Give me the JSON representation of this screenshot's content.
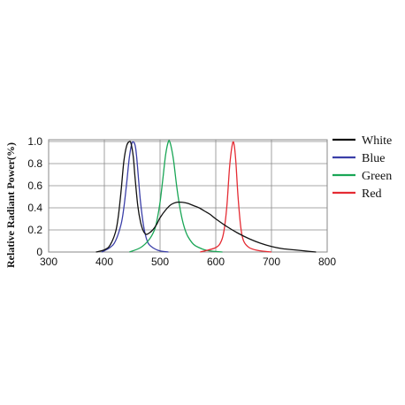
{
  "chart_data": {
    "type": "line",
    "xlabel": "",
    "ylabel": "Relative Radiant Power(%)",
    "xlim": [
      300,
      800
    ],
    "ylim": [
      0,
      1.0
    ],
    "x_ticks": [
      "300",
      "400",
      "500",
      "600",
      "700",
      "800"
    ],
    "y_ticks": [
      "0",
      "0.2",
      "0.4",
      "0.6",
      "0.8",
      "1.0"
    ],
    "grid": true,
    "legend_position": "right",
    "series": [
      {
        "name": "White",
        "color": "#111111",
        "x": [
          385,
          400,
          410,
          420,
          425,
          430,
          435,
          440,
          445,
          448,
          452,
          455,
          460,
          465,
          470,
          475,
          480,
          485,
          490,
          495,
          500,
          510,
          520,
          530,
          540,
          550,
          560,
          570,
          580,
          590,
          600,
          620,
          640,
          660,
          680,
          700,
          720,
          740,
          760,
          780
        ],
        "y": [
          0.0,
          0.02,
          0.06,
          0.18,
          0.32,
          0.55,
          0.82,
          0.96,
          1.0,
          0.98,
          0.86,
          0.68,
          0.42,
          0.27,
          0.19,
          0.16,
          0.17,
          0.19,
          0.22,
          0.26,
          0.31,
          0.38,
          0.43,
          0.45,
          0.45,
          0.44,
          0.42,
          0.4,
          0.37,
          0.34,
          0.3,
          0.23,
          0.17,
          0.12,
          0.08,
          0.05,
          0.03,
          0.02,
          0.01,
          0.0
        ]
      },
      {
        "name": "Blue",
        "color": "#3b3fa8",
        "x": [
          395,
          410,
          420,
          430,
          435,
          440,
          445,
          450,
          455,
          458,
          462,
          465,
          470,
          475,
          480,
          490,
          500,
          515
        ],
        "y": [
          0.0,
          0.04,
          0.1,
          0.25,
          0.4,
          0.62,
          0.86,
          0.99,
          0.97,
          0.86,
          0.62,
          0.45,
          0.25,
          0.13,
          0.07,
          0.03,
          0.01,
          0.0
        ]
      },
      {
        "name": "Green",
        "color": "#1aa656",
        "x": [
          445,
          465,
          480,
          490,
          495,
          500,
          505,
          510,
          515,
          518,
          522,
          525,
          530,
          535,
          540,
          545,
          550,
          560,
          570,
          580,
          590,
          600,
          612
        ],
        "y": [
          0.0,
          0.04,
          0.11,
          0.2,
          0.3,
          0.45,
          0.66,
          0.88,
          1.0,
          0.99,
          0.9,
          0.8,
          0.59,
          0.42,
          0.29,
          0.2,
          0.14,
          0.07,
          0.04,
          0.02,
          0.01,
          0.005,
          0.0
        ]
      },
      {
        "name": "Red",
        "color": "#e52b33",
        "x": [
          572,
          600,
          610,
          615,
          620,
          625,
          630,
          633,
          636,
          640,
          645,
          650,
          660,
          675,
          690,
          700
        ],
        "y": [
          0.0,
          0.04,
          0.1,
          0.2,
          0.42,
          0.78,
          0.98,
          0.97,
          0.82,
          0.5,
          0.22,
          0.1,
          0.04,
          0.015,
          0.005,
          0.0
        ]
      }
    ]
  }
}
